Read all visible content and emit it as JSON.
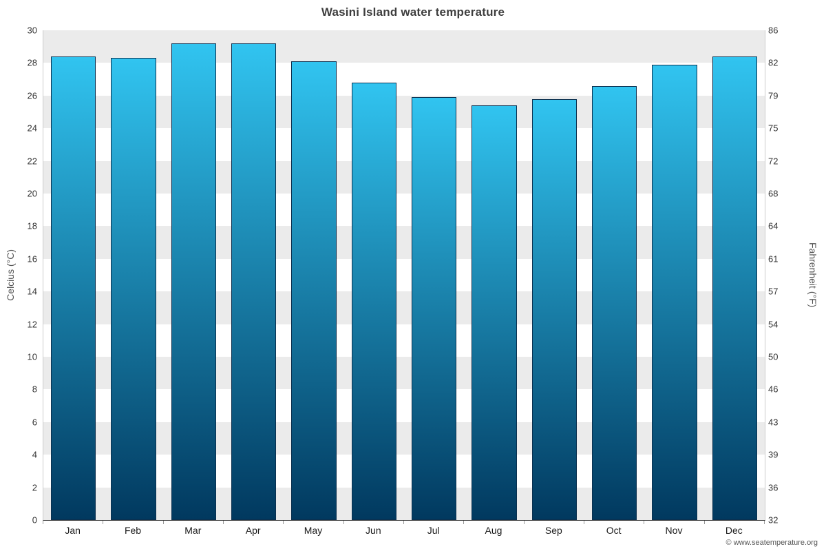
{
  "footer": {
    "credit": "© www.seatemperature.org"
  },
  "chart_data": {
    "type": "bar",
    "title": "Wasini Island water temperature",
    "categories": [
      "Jan",
      "Feb",
      "Mar",
      "Apr",
      "May",
      "Jun",
      "Jul",
      "Aug",
      "Sep",
      "Oct",
      "Nov",
      "Dec"
    ],
    "values": [
      28.4,
      28.3,
      29.2,
      29.2,
      28.1,
      26.8,
      25.9,
      25.4,
      25.8,
      26.6,
      27.9,
      28.4
    ],
    "ylabel_left": "Celcius (°C)",
    "ylabel_right": "Fahrenheit (°F)",
    "ylim": [
      0,
      30
    ],
    "ytick_step": 2,
    "yticks_celsius": [
      0,
      2,
      4,
      6,
      8,
      10,
      12,
      14,
      16,
      18,
      20,
      22,
      24,
      26,
      28,
      30
    ],
    "yticks_fahrenheit": [
      32,
      36,
      39,
      43,
      46,
      50,
      54,
      57,
      61,
      64,
      68,
      72,
      75,
      79,
      82,
      86
    ],
    "grid": "horizontal-bands-alternating",
    "legend": "none",
    "band_colors": [
      "#ebebeb",
      "#ffffff"
    ],
    "bar_top_color": "#31c4f0",
    "bar_bottom_color": "#01395f",
    "bar_border_color": "#0a2f4e",
    "bar_width_fraction": 0.75
  }
}
